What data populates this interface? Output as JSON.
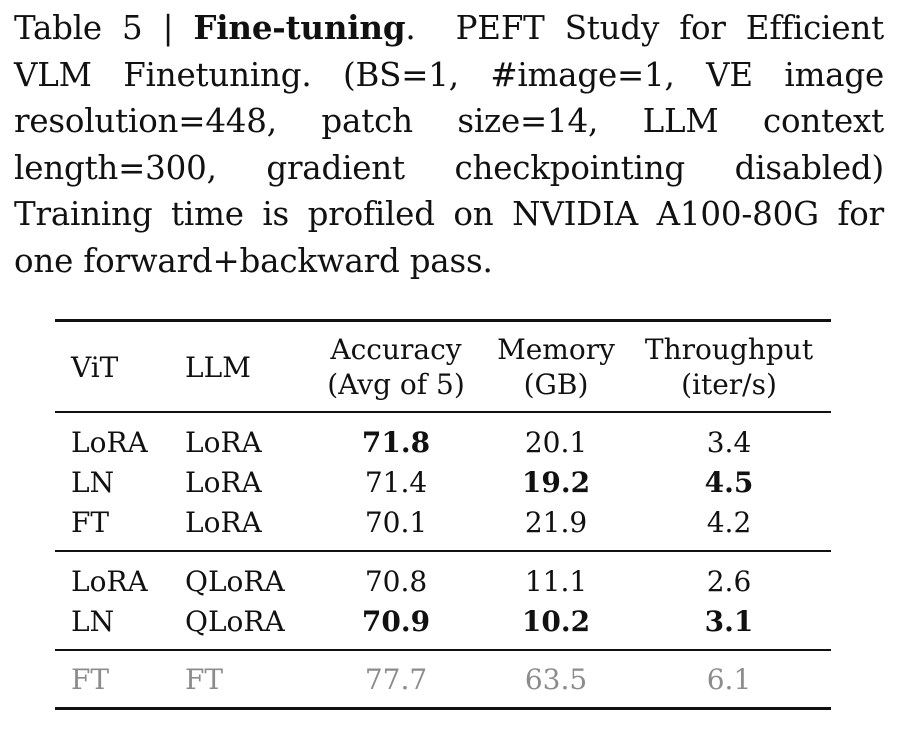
{
  "caption": {
    "label": "Table 5",
    "sep": "|",
    "title": "Fine-tuning",
    "text": "PEFT Study for Efficient VLM Finetuning. (BS=1, #image=1, VE image resolution=448, patch size=14, LLM context length=300, gradient checkpointing disabled) Training time is profiled on NVIDIA A100-80G for one forward+backward pass."
  },
  "headers": {
    "vit": "ViT",
    "llm": "LLM",
    "acc_1": "Accuracy",
    "acc_2": "(Avg of 5)",
    "mem_1": "Memory",
    "mem_2": "(GB)",
    "thr_1": "Throughput",
    "thr_2": "(iter/s)"
  },
  "rows": [
    {
      "vit": "LoRA",
      "llm": "LoRA",
      "acc": "71.8",
      "mem": "20.1",
      "thr": "3.4"
    },
    {
      "vit": "LN",
      "llm": "LoRA",
      "acc": "71.4",
      "mem": "19.2",
      "thr": "4.5"
    },
    {
      "vit": "FT",
      "llm": "LoRA",
      "acc": "70.1",
      "mem": "21.9",
      "thr": "4.2"
    },
    {
      "vit": "LoRA",
      "llm": "QLoRA",
      "acc": "70.8",
      "mem": "11.1",
      "thr": "2.6"
    },
    {
      "vit": "LN",
      "llm": "QLoRA",
      "acc": "70.9",
      "mem": "10.2",
      "thr": "3.1"
    },
    {
      "vit": "FT",
      "llm": "FT",
      "acc": "77.7",
      "mem": "63.5",
      "thr": "6.1"
    }
  ]
}
